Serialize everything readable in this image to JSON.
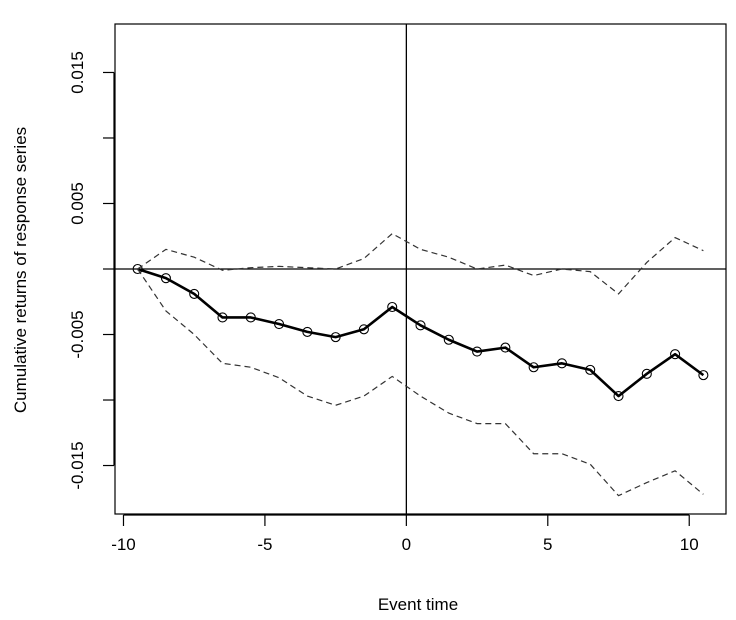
{
  "chart_data": {
    "type": "line",
    "title": "",
    "xlabel": "Event time",
    "ylabel": "Cumulative returns of response series",
    "xlim": [
      -10.3,
      11.3
    ],
    "ylim": [
      -0.0187,
      0.0187
    ],
    "x_ticks": [
      -10,
      -5,
      0,
      5,
      10
    ],
    "x_tick_labels": [
      "-10",
      "-5",
      "0",
      "5",
      "10"
    ],
    "y_ticks": [
      -0.015,
      -0.01,
      -0.005,
      0,
      0.005,
      0.01,
      0.015
    ],
    "y_tick_labels": [
      "-0.015",
      "",
      "-0.005",
      "",
      "0.005",
      "",
      "0.015"
    ],
    "reference_lines": {
      "horizontal": 0,
      "vertical": 0
    },
    "x": [
      -9.5,
      -8.5,
      -7.5,
      -6.5,
      -5.5,
      -4.5,
      -3.5,
      -2.5,
      -1.5,
      -0.5,
      0.5,
      1.5,
      2.5,
      3.5,
      4.5,
      5.5,
      6.5,
      7.5,
      8.5,
      9.5,
      10.5
    ],
    "series": [
      {
        "role": "estimate",
        "style": "solid-with-circles",
        "values": [
          0.0,
          -0.0007,
          -0.0019,
          -0.0037,
          -0.0037,
          -0.0042,
          -0.0048,
          -0.0052,
          -0.0046,
          -0.0029,
          -0.0043,
          -0.0054,
          -0.0063,
          -0.006,
          -0.0075,
          -0.0072,
          -0.0077,
          -0.0097,
          -0.008,
          -0.0065,
          -0.0081
        ]
      },
      {
        "role": "upper-band",
        "style": "dashed",
        "values": [
          0.0,
          0.0015,
          0.0009,
          -0.0001,
          0.0001,
          0.0002,
          0.0001,
          0.0,
          0.0008,
          0.0027,
          0.0015,
          0.0009,
          0.0,
          0.0003,
          -0.0005,
          0.0,
          -0.0002,
          -0.0019,
          0.0005,
          0.0024,
          0.0014
        ]
      },
      {
        "role": "lower-band",
        "style": "dashed",
        "values": [
          0.0,
          -0.0032,
          -0.005,
          -0.0072,
          -0.0075,
          -0.0083,
          -0.0097,
          -0.0104,
          -0.0097,
          -0.0082,
          -0.0097,
          -0.011,
          -0.0118,
          -0.0118,
          -0.0141,
          -0.0141,
          -0.0149,
          -0.0173,
          -0.0163,
          -0.0154,
          -0.0172
        ]
      }
    ],
    "grid": false,
    "legend": "none"
  }
}
